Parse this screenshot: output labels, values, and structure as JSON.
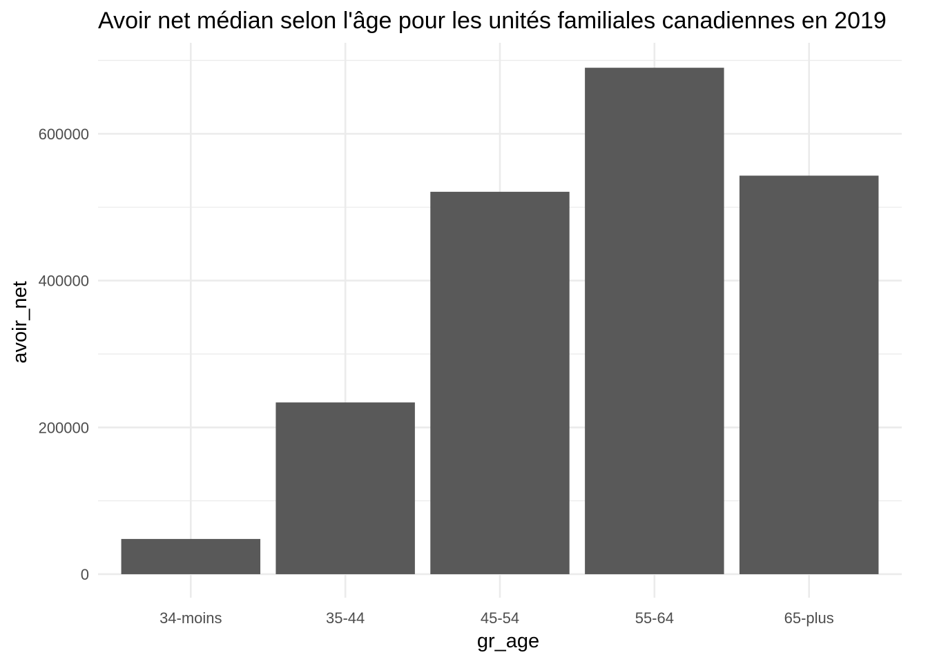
{
  "chart_data": {
    "type": "bar",
    "title": "Avoir net médian selon l'âge pour les unités familiales canadiennes en 2019",
    "xlabel": "gr_age",
    "ylabel": "avoir_net",
    "categories": [
      "34-moins",
      "35-44",
      "45-54",
      "55-64",
      "65-plus"
    ],
    "values": [
      48000,
      234000,
      521000,
      690000,
      543000
    ],
    "ylim": [
      -32000,
      724000
    ],
    "yticks": [
      0,
      200000,
      400000,
      600000
    ],
    "ytick_labels": [
      "0",
      "200000",
      "400000",
      "600000"
    ],
    "grid": true,
    "legend": "none",
    "colors": {
      "bar": "#595959",
      "grid": "#ebebeb",
      "tick_text": "#4d4d4d",
      "text": "#000000",
      "background": "#ffffff"
    }
  }
}
